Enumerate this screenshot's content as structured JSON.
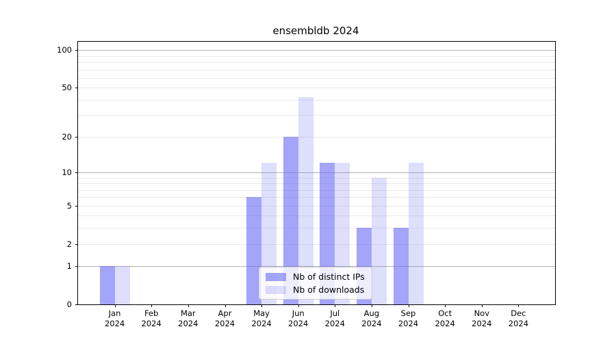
{
  "chart_data": {
    "type": "bar",
    "title": "ensembldb 2024",
    "year": "2024",
    "months": [
      "Jan",
      "Feb",
      "Mar",
      "Apr",
      "May",
      "Jun",
      "Jul",
      "Aug",
      "Sep",
      "Oct",
      "Nov",
      "Dec"
    ],
    "categories": [
      "Jan 2024",
      "Feb 2024",
      "Mar 2024",
      "Apr 2024",
      "May 2024",
      "Jun 2024",
      "Jul 2024",
      "Aug 2024",
      "Sep 2024",
      "Oct 2024",
      "Nov 2024",
      "Dec 2024"
    ],
    "series": [
      {
        "name": "Nb of distinct IPs",
        "color": "rgba(103,103,245,0.60)",
        "values": [
          1,
          0,
          0,
          0,
          6,
          20,
          12,
          3,
          3,
          0,
          0,
          0
        ]
      },
      {
        "name": "Nb of downloads",
        "color": "rgba(103,103,245,0.22)",
        "values": [
          1,
          0,
          0,
          0,
          12,
          42,
          12,
          9,
          12,
          0,
          0,
          0
        ]
      }
    ],
    "y_axis": {
      "scale": "log1p",
      "labeled_ticks": [
        0,
        1,
        2,
        5,
        10,
        20,
        50,
        100
      ],
      "major_gridlines": [
        1,
        10,
        100
      ],
      "minor_gridlines": [
        2,
        3,
        4,
        5,
        6,
        7,
        8,
        9,
        20,
        30,
        40,
        50,
        60,
        70,
        80,
        90
      ],
      "top_value": 118
    },
    "legend": {
      "position": "lower center",
      "entries": [
        "Nb of distinct IPs",
        "Nb of downloads"
      ]
    },
    "grid": true
  },
  "colors": {
    "bar_ips": "rgba(103,103,245,0.60)",
    "bar_downloads": "rgba(103,103,245,0.22)",
    "grid_major": "#b2b2b2",
    "grid_minor": "#e9e9e9",
    "axis": "#000000",
    "legend_border": "#cccccc",
    "legend_bg": "rgba(255,255,255,0.8)"
  }
}
